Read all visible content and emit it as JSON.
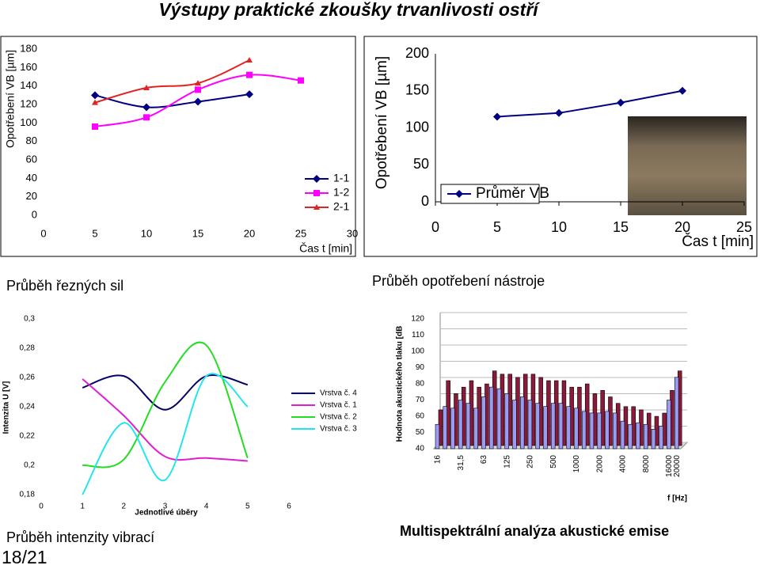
{
  "title": "Výstupy praktické zkoušky trvanlivosti ostří",
  "page_number": "18/21",
  "chart_data": [
    {
      "type": "line",
      "caption": "Průběh řezných sil",
      "y_label": "Opotřebení VB [µm]",
      "x_label": "Čas t [min]",
      "x": [
        5,
        10,
        15,
        20,
        25
      ],
      "xlim": [
        0,
        30
      ],
      "xticks": [
        0,
        5,
        10,
        15,
        20,
        25,
        30
      ],
      "ylim": [
        0,
        180
      ],
      "yticks": [
        0,
        20,
        40,
        60,
        80,
        100,
        120,
        140,
        160,
        180
      ],
      "smooth": true,
      "legend": "lower right",
      "series": [
        {
          "name": "1-1",
          "color": "#000080",
          "marker": "diamond",
          "values": [
            130,
            117,
            123,
            131,
            null
          ]
        },
        {
          "name": "1-2",
          "color": "#ff00ff",
          "marker": "square",
          "values": [
            96,
            106,
            136,
            152,
            146
          ]
        },
        {
          "name": "2-1",
          "color": "#e32222",
          "marker": "triangle",
          "values": [
            122,
            138,
            143,
            168,
            null
          ]
        }
      ]
    },
    {
      "type": "line",
      "caption": "Průběh opotřebení nástroje",
      "y_label": "Opotřebení VB [µm]",
      "x_label": "Čas t [min]",
      "x": [
        5,
        10,
        15,
        20
      ],
      "xlim": [
        0,
        25
      ],
      "xticks": [
        0,
        5,
        10,
        15,
        20,
        25
      ],
      "ylim": [
        0,
        200
      ],
      "yticks": [
        0,
        50,
        100,
        150,
        200
      ],
      "smooth": false,
      "legend": "lower left",
      "series": [
        {
          "name": "Průměr VB",
          "color": "#000080",
          "marker": "diamond",
          "values": [
            115,
            120,
            134,
            150
          ]
        }
      ]
    },
    {
      "type": "line",
      "caption": "Průběh intenzity vibrací",
      "y_label": "Intenzita U [V]",
      "x_label": "Jednotlivé úběry",
      "x": [
        1,
        2,
        3,
        4,
        5
      ],
      "xlim": [
        0,
        6
      ],
      "xticks": [
        0,
        1,
        2,
        3,
        4,
        5,
        6
      ],
      "ylim": [
        0.18,
        0.3
      ],
      "yticks": [
        {
          "value": 0.18,
          "label": "0,18"
        },
        {
          "value": 0.2,
          "label": "0,2"
        },
        {
          "value": 0.22,
          "label": "0,22"
        },
        {
          "value": 0.24,
          "label": "0,24"
        },
        {
          "value": 0.26,
          "label": "0,26"
        },
        {
          "value": 0.28,
          "label": "0,28"
        },
        {
          "value": 0.3,
          "label": "0,3"
        }
      ],
      "smooth": true,
      "legend": "right",
      "series": [
        {
          "name": "Vrstva č. 4",
          "color": "#000066",
          "values": [
            0.253,
            0.261,
            0.238,
            0.261,
            0.255
          ]
        },
        {
          "name": "Vrstva č. 1",
          "color": "#e020d0",
          "values": [
            0.259,
            0.234,
            0.206,
            0.205,
            0.203
          ]
        },
        {
          "name": "Vrstva č. 2",
          "color": "#22dd22",
          "values": [
            0.2,
            0.204,
            0.257,
            0.282,
            0.205
          ]
        },
        {
          "name": "Vrstva č. 3",
          "color": "#22e5f0",
          "values": [
            0.18,
            0.229,
            0.19,
            0.261,
            0.24
          ]
        }
      ]
    },
    {
      "type": "bar",
      "three_d": true,
      "caption": "Multispektrální analýza akustické emise",
      "y_label": "Hodnota akustického tlaku [dB",
      "x_label": "f [Hz]",
      "categories": [
        "16",
        null,
        null,
        "31,5",
        null,
        null,
        "63",
        null,
        null,
        "125",
        null,
        null,
        "250",
        null,
        null,
        "500",
        null,
        null,
        "1000",
        null,
        null,
        "2000",
        null,
        null,
        "4000",
        null,
        null,
        "8000",
        null,
        null,
        "16000",
        "20000"
      ],
      "ylim": [
        40,
        120
      ],
      "yticks": [
        40,
        50,
        60,
        70,
        80,
        90,
        100,
        110,
        120
      ],
      "grid": true,
      "series": [
        {
          "color": "#8b1a3a",
          "values": [
            62,
            80,
            72,
            76,
            80,
            76,
            78,
            86,
            84,
            84,
            82,
            84,
            84,
            82,
            80,
            80,
            80,
            76,
            76,
            78,
            72,
            74,
            70,
            66,
            64,
            64,
            62,
            60,
            58,
            60,
            74,
            86
          ]
        },
        {
          "color": "#9a9cf4",
          "values": [
            55,
            66,
            65,
            70,
            68,
            65,
            72,
            78,
            77,
            74,
            70,
            72,
            70,
            68,
            66,
            68,
            68,
            66,
            65,
            63,
            62,
            62,
            63,
            62,
            57,
            55,
            56,
            55,
            52,
            54,
            70,
            84
          ]
        }
      ]
    }
  ]
}
